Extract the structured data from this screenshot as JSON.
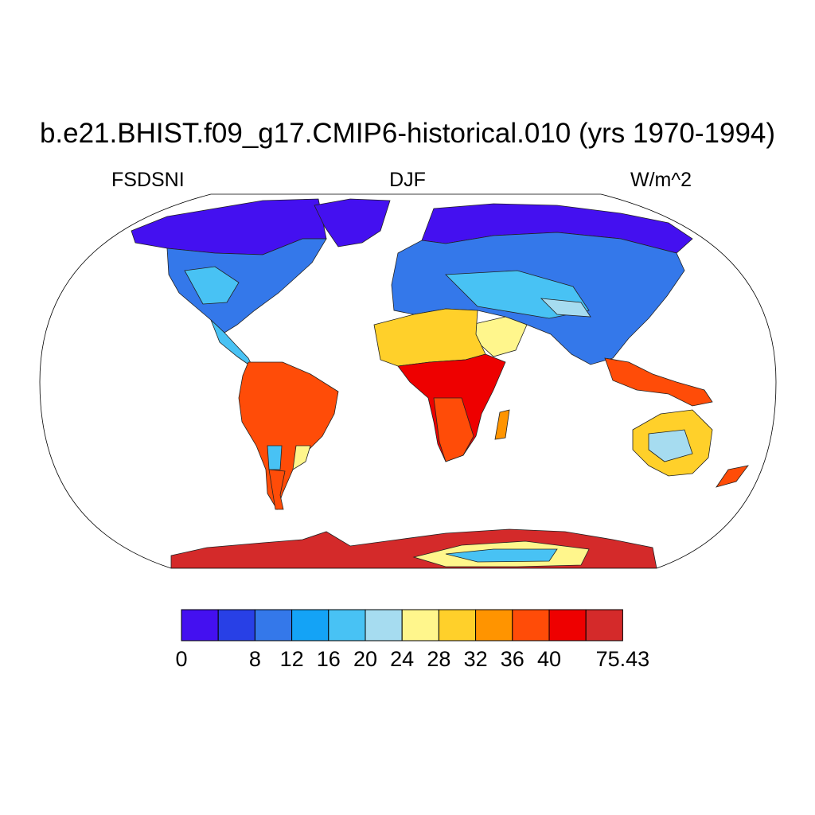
{
  "title": "b.e21.BHIST.f09_g17.CMIP6-historical.010 (yrs 1970-1994)",
  "subtitle": {
    "left": "FSDSNI",
    "center": "DJF",
    "right": "W/m^2"
  },
  "colorbar": {
    "colors": [
      "#4410f0",
      "#2840e6",
      "#3478ea",
      "#14a3f6",
      "#48c2f4",
      "#a6dcf0",
      "#fff68c",
      "#ffd02a",
      "#ff9400",
      "#ff4c08",
      "#ee0000",
      "#d42a2a"
    ],
    "labels": [
      "0",
      "8",
      "12",
      "16",
      "20",
      "24",
      "28",
      "32",
      "36",
      "40",
      "75.43"
    ],
    "label_bins": [
      0,
      2,
      3,
      4,
      5,
      6,
      7,
      8,
      9,
      10,
      12
    ]
  },
  "map_data": {
    "projection": "Robinson",
    "variable": "FSDSNI",
    "season": "DJF",
    "units": "W/m^2"
  }
}
